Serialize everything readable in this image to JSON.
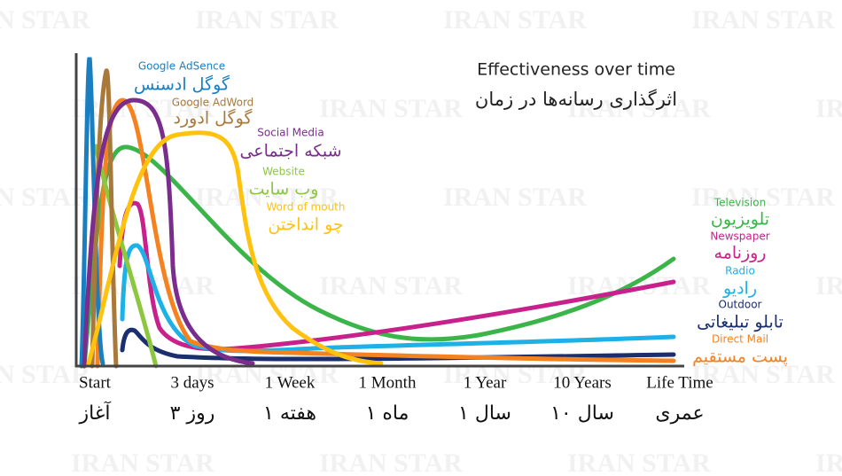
{
  "title": {
    "en": "Effectiveness over time",
    "fa": "اثرگذاری رسانه‌ها در زمان"
  },
  "watermark": "IRAN STAR",
  "media": [
    {
      "en": "Google AdSence",
      "fa": "گوگل ادسنس",
      "color": "#1a7fc1"
    },
    {
      "en": "Google AdWord",
      "fa": "گوگل ادورد",
      "color": "#a8793a"
    },
    {
      "en": "Social Media",
      "fa": "شبکه اجتماعی",
      "color": "#7b2d8e"
    },
    {
      "en": "Website",
      "fa": "وب سایت",
      "color": "#8dc63f"
    },
    {
      "en": "Word of mouth",
      "fa": "چو انداختن",
      "color": "#ffc20e"
    },
    {
      "en": "Television",
      "fa": "تلویزیون",
      "color": "#3bb54a"
    },
    {
      "en": "Newspaper",
      "fa": "روزنامه",
      "color": "#c8218c"
    },
    {
      "en": "Radio",
      "fa": "رادیو",
      "color": "#1eb1e6"
    },
    {
      "en": "Outdoor",
      "fa": "تابلو تبلیغاتی",
      "color": "#1b2f6e"
    },
    {
      "en": "Direct Mail",
      "fa": "پست مستقیم",
      "color": "#f58220"
    }
  ],
  "time_axis": [
    {
      "en": "Start",
      "fa": "آغاز"
    },
    {
      "en": "3 days",
      "fa": "۳ روز"
    },
    {
      "en": "1 Week",
      "fa": "۱ هفته"
    },
    {
      "en": "1 Month",
      "fa": "۱ ماه"
    },
    {
      "en": "1 Year",
      "fa": "۱ سال"
    },
    {
      "en": "10 Years",
      "fa": "۱۰ سال"
    },
    {
      "en": "Life Time",
      "fa": "عمری"
    }
  ]
}
